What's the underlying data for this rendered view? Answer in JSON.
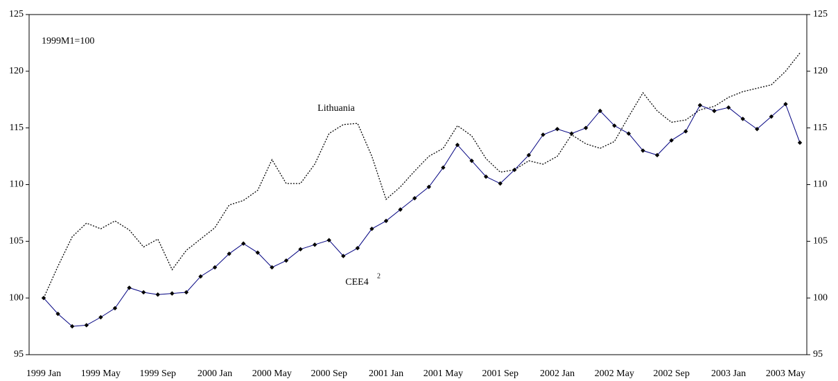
{
  "chart_data": {
    "type": "line",
    "annotations": [
      "1999M1=100"
    ],
    "footnote_marker": "2",
    "categories": [
      "1999 Jan",
      null,
      null,
      null,
      "1999 May",
      null,
      null,
      null,
      "1999 Sep",
      null,
      null,
      null,
      "2000 Jan",
      null,
      null,
      null,
      "2000 May",
      null,
      null,
      null,
      "2000 Sep",
      null,
      null,
      null,
      "2001 Jan",
      null,
      null,
      null,
      "2001 May",
      null,
      null,
      null,
      "2001 Sep",
      null,
      null,
      null,
      "2002 Jan",
      null,
      null,
      null,
      "2002 May",
      null,
      null,
      null,
      "2002 Sep",
      null,
      null,
      null,
      "2003 Jan",
      null,
      null,
      null,
      "2003 May",
      null
    ],
    "series": [
      {
        "name": "Lithuania",
        "color": "#000000",
        "style": "dotted",
        "values": [
          100.0,
          102.8,
          105.4,
          106.6,
          106.1,
          106.8,
          106.0,
          104.5,
          105.2,
          102.5,
          104.2,
          105.2,
          106.2,
          108.2,
          108.6,
          109.5,
          112.2,
          110.1,
          110.1,
          111.8,
          114.5,
          115.3,
          115.4,
          112.5,
          108.7,
          109.8,
          111.2,
          112.5,
          113.2,
          115.2,
          114.3,
          112.3,
          111.1,
          111.3,
          112.1,
          111.8,
          112.5,
          114.4,
          113.6,
          113.2,
          113.8,
          116.0,
          118.1,
          116.5,
          115.5,
          115.7,
          116.6,
          116.9,
          117.7,
          118.2,
          118.5,
          118.8,
          120.0,
          121.6
        ]
      },
      {
        "name": "CEE4",
        "color": "#000080",
        "style": "solid",
        "marker_color": "#000000",
        "values": [
          100.0,
          98.6,
          97.5,
          97.6,
          98.3,
          99.1,
          100.9,
          100.5,
          100.3,
          100.4,
          100.5,
          101.9,
          102.7,
          103.9,
          104.8,
          104.0,
          102.7,
          103.3,
          104.3,
          104.7,
          105.1,
          103.7,
          104.4,
          106.1,
          106.8,
          107.8,
          108.8,
          109.8,
          111.5,
          113.5,
          112.1,
          110.7,
          110.1,
          111.3,
          112.6,
          114.4,
          114.9,
          114.5,
          115.0,
          116.5,
          115.2,
          114.5,
          113.0,
          112.6,
          113.9,
          114.7,
          117.0,
          116.5,
          116.8,
          115.8,
          114.9,
          116.0,
          117.1,
          113.7
        ]
      }
    ],
    "ylim": [
      95,
      125
    ],
    "yticks": [
      95,
      100,
      105,
      110,
      115,
      120,
      125
    ],
    "grid": false
  }
}
